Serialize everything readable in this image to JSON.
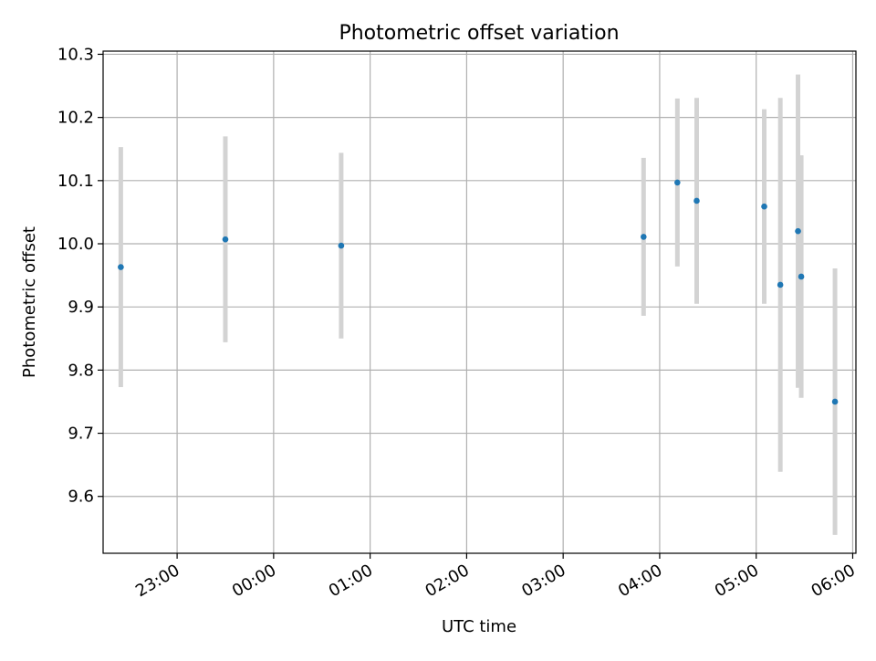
{
  "chart_data": {
    "type": "scatter",
    "title": "Photometric offset variation",
    "xlabel": "UTC time",
    "ylabel": "Photometric offset",
    "x_ticks": [
      "23:00",
      "00:00",
      "01:00",
      "02:00",
      "03:00",
      "04:00",
      "05:00",
      "06:00"
    ],
    "y_ticks": [
      "9.6",
      "9.7",
      "9.8",
      "9.9",
      "10.0",
      "10.1",
      "10.2",
      "10.3"
    ],
    "xlim": [
      "22:14",
      "06:02"
    ],
    "ylim": [
      9.51,
      10.305
    ],
    "grid": true,
    "series": [
      {
        "marker_color": "#1f77b4",
        "errorbar_color": "#d3d3d3",
        "points": [
          {
            "x": "22:25",
            "y": 9.963,
            "err": 0.19
          },
          {
            "x": "23:30",
            "y": 10.007,
            "err": 0.163
          },
          {
            "x": "00:42",
            "y": 9.997,
            "err": 0.147
          },
          {
            "x": "03:50",
            "y": 10.011,
            "err": 0.125
          },
          {
            "x": "04:11",
            "y": 10.097,
            "err": 0.133
          },
          {
            "x": "04:23",
            "y": 10.068,
            "err": 0.163
          },
          {
            "x": "05:05",
            "y": 10.059,
            "err": 0.154
          },
          {
            "x": "05:15",
            "y": 9.935,
            "err": 0.296
          },
          {
            "x": "05:26",
            "y": 10.02,
            "err": 0.248
          },
          {
            "x": "05:28",
            "y": 9.948,
            "err": 0.192
          },
          {
            "x": "05:49",
            "y": 9.75,
            "err": 0.211
          }
        ]
      }
    ]
  }
}
